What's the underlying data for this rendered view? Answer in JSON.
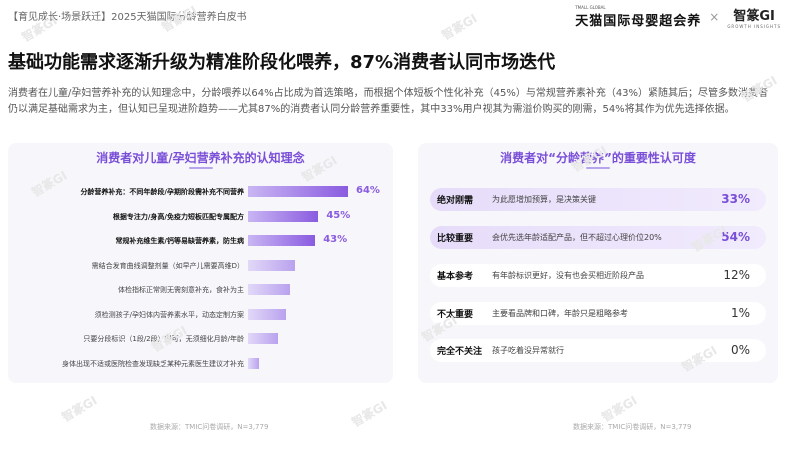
{
  "header": {
    "report_label": "【育见成长·场景跃迁】2025天猫国际分龄营养白皮书",
    "brand_small": "TMALL GLOBAL",
    "brand_main": "天猫国际母婴超会养",
    "brand_separator": "×",
    "partner_main": "智篆GI",
    "partner_sub": "GROWTH INSIGHTS"
  },
  "title": "基础功能需求逐渐升级为精准阶段化喂养，87%消费者认同市场迭代",
  "intro": "消费者在儿童/孕妇营养补充的认知理念中，分龄喂养以64%占比成为首选策略，而根据个体短板个性化补充（45%）与常规营养素补充（43%）紧随其后；尽管多数消费者仍以满足基础需求为主，但认知已呈现进阶趋势——尤其87%的消费者认同分龄营养重要性，其中33%用户视其为需溢价购买的刚需，54%将其作为优先选择依据。",
  "left_panel": {
    "title": "消费者对儿童/孕妇营养补充的认知理念",
    "source": "数据来源：TMIC问卷调研，N=3,779"
  },
  "right_panel": {
    "title": "消费者对“分龄营养”的重要性认可度",
    "source": "数据来源：TMIC问卷调研，N=3,779",
    "rows": [
      {
        "name": "绝对刚需",
        "desc": "为此愿增加预算，是决策关键",
        "value": "33%"
      },
      {
        "name": "比较重要",
        "desc": "会优先选年龄适配产品，但不超过心理价位20%",
        "value": "54%"
      },
      {
        "name": "基本参考",
        "desc": "有年龄标识更好，没有也会买相近阶段产品",
        "value": "12%"
      },
      {
        "name": "不太重要",
        "desc": "主要看品牌和口碑，年龄只是粗略参考",
        "value": "1%"
      },
      {
        "name": "完全不关注",
        "desc": "孩子吃着没异常就行",
        "value": "0%"
      }
    ]
  },
  "chart_data": [
    {
      "type": "bar",
      "orientation": "horizontal",
      "title": "消费者对儿童/孕妇营养补充的认知理念",
      "categories": [
        "分龄营养补充：不同年龄段/孕期阶段需补充不同营养",
        "根据专注力/身高/免疫力短板匹配专属配方",
        "常规补充维生素/钙等易缺营养素，防生病",
        "需结合发育曲线调整剂量（如早产儿需要高维D）",
        "体检指标正常则无需刻意补充，食补为主",
        "须检测孩子/孕妇体内营养素水平，动态定制方案",
        "只要分段标识（1段/2段）即可，无须细化月龄/年龄",
        "身体出现不适或医院检查发现缺乏某种元素医生建议才补充"
      ],
      "values": [
        64,
        45,
        43,
        30,
        27,
        24,
        19,
        7
      ],
      "value_labels": [
        "64%",
        "45%",
        "43%",
        "",
        "",
        "",
        "",
        ""
      ],
      "bold_categories": [
        0,
        1,
        2
      ],
      "source": "数据来源：TMIC问卷调研，N=3,779"
    },
    {
      "type": "table",
      "title": "消费者对“分龄营养”的重要性认可度",
      "categories": [
        "绝对刚需",
        "比较重要",
        "基本参考",
        "不太重要",
        "完全不关注"
      ],
      "values": [
        33,
        54,
        12,
        1,
        0
      ],
      "source": "数据来源：TMIC问卷调研，N=3,779"
    }
  ],
  "watermark": "智篆GI"
}
